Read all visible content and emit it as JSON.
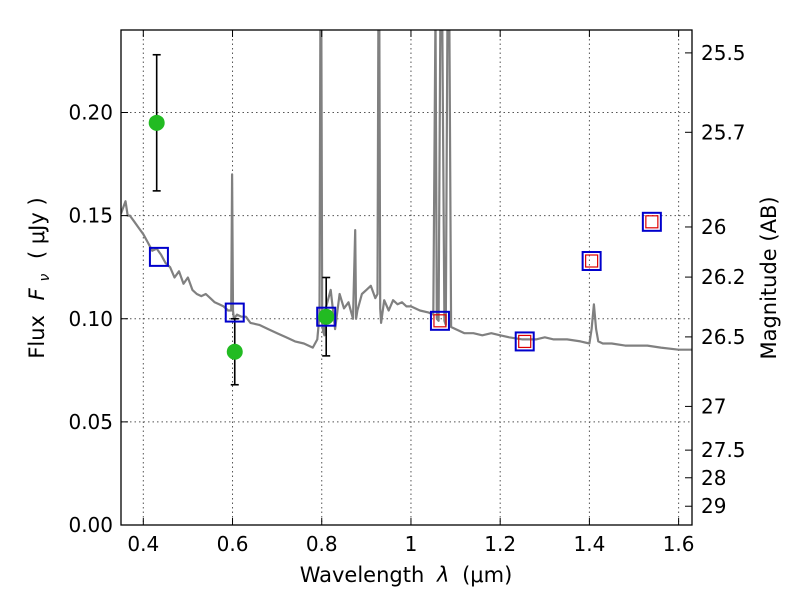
{
  "chart_data": {
    "type": "scatter",
    "xlabel_prefix": "Wavelength",
    "xlabel_symbol": "λ",
    "xlabel_unit": "(μm)",
    "ylabel_prefix": "Flux",
    "ylabel_symbol": "F",
    "ylabel_symbol_sub": "ν",
    "ylabel_unit": "( μJy )",
    "y2label": "Magnitude (AB)",
    "xlim": [
      0.35,
      1.63
    ],
    "ylim": [
      0.0,
      0.24
    ],
    "grid": true,
    "x_ticks": [
      0.4,
      0.6,
      0.8,
      1.0,
      1.2,
      1.4,
      1.6
    ],
    "x_tick_labels": [
      "0.4",
      "0.6",
      "0.8",
      "1",
      "1.2",
      "1.4",
      "1.6"
    ],
    "y_ticks": [
      0.0,
      0.05,
      0.1,
      0.15,
      0.2
    ],
    "y_tick_labels": [
      "0.00",
      "0.05",
      "0.10",
      "0.15",
      "0.20"
    ],
    "y2_ticks": [
      {
        "label": "25.5",
        "flux": 0.2289
      },
      {
        "label": "25.7",
        "flux": 0.1904
      },
      {
        "label": "26",
        "flux": 0.1445
      },
      {
        "label": "26.2",
        "flux": 0.1202
      },
      {
        "label": "26.5",
        "flux": 0.0912
      },
      {
        "label": "27",
        "flux": 0.0575
      },
      {
        "label": "27.5",
        "flux": 0.0363
      },
      {
        "label": "28",
        "flux": 0.0229
      },
      {
        "label": "29",
        "flux": 0.0091
      }
    ],
    "series": [
      {
        "kind": "model_sed",
        "color": "#808080",
        "x": [
          0.35,
          0.36,
          0.365,
          0.37,
          0.38,
          0.39,
          0.4,
          0.41,
          0.42,
          0.43,
          0.44,
          0.45,
          0.46,
          0.47,
          0.48,
          0.49,
          0.5,
          0.51,
          0.52,
          0.53,
          0.54,
          0.55,
          0.56,
          0.57,
          0.58,
          0.59,
          0.597,
          0.599,
          0.601,
          0.603,
          0.61,
          0.62,
          0.63,
          0.64,
          0.66,
          0.68,
          0.7,
          0.72,
          0.74,
          0.76,
          0.78,
          0.79,
          0.795,
          0.797,
          0.799,
          0.801,
          0.803,
          0.806,
          0.81,
          0.82,
          0.83,
          0.84,
          0.85,
          0.86,
          0.87,
          0.875,
          0.877,
          0.88,
          0.89,
          0.9,
          0.91,
          0.92,
          0.925,
          0.927,
          0.929,
          0.931,
          0.933,
          0.94,
          0.95,
          0.96,
          0.97,
          0.98,
          0.99,
          1.0,
          1.02,
          1.04,
          1.05,
          1.055,
          1.058,
          1.062,
          1.066,
          1.07,
          1.075,
          1.078,
          1.082,
          1.086,
          1.09,
          1.1,
          1.12,
          1.14,
          1.16,
          1.18,
          1.2,
          1.22,
          1.25,
          1.28,
          1.3,
          1.32,
          1.35,
          1.38,
          1.4,
          1.405,
          1.41,
          1.415,
          1.42,
          1.43,
          1.45,
          1.48,
          1.5,
          1.53,
          1.56,
          1.6,
          1.63
        ],
        "y": [
          0.151,
          0.157,
          0.15,
          0.15,
          0.147,
          0.144,
          0.141,
          0.137,
          0.133,
          0.134,
          0.131,
          0.127,
          0.125,
          0.12,
          0.123,
          0.117,
          0.12,
          0.114,
          0.112,
          0.111,
          0.112,
          0.11,
          0.108,
          0.107,
          0.106,
          0.104,
          0.104,
          0.17,
          0.104,
          0.1,
          0.102,
          0.101,
          0.101,
          0.098,
          0.097,
          0.095,
          0.093,
          0.091,
          0.089,
          0.088,
          0.086,
          0.09,
          0.102,
          0.25,
          0.25,
          0.098,
          0.094,
          0.092,
          0.106,
          0.114,
          0.095,
          0.112,
          0.105,
          0.108,
          0.1,
          0.143,
          0.1,
          0.104,
          0.112,
          0.114,
          0.116,
          0.11,
          0.112,
          0.25,
          0.25,
          0.105,
          0.098,
          0.109,
          0.104,
          0.109,
          0.107,
          0.108,
          0.106,
          0.106,
          0.104,
          0.103,
          0.102,
          0.25,
          0.1,
          0.099,
          0.25,
          0.25,
          0.099,
          0.097,
          0.25,
          0.25,
          0.096,
          0.095,
          0.093,
          0.093,
          0.092,
          0.093,
          0.092,
          0.091,
          0.09,
          0.09,
          0.091,
          0.09,
          0.09,
          0.089,
          0.088,
          0.095,
          0.107,
          0.095,
          0.089,
          0.088,
          0.088,
          0.087,
          0.087,
          0.087,
          0.086,
          0.085,
          0.085
        ]
      },
      {
        "kind": "model_photometry",
        "marker": "square",
        "color": "#0000cc",
        "x": [
          0.435,
          0.605,
          0.81,
          1.065,
          1.255,
          1.405,
          1.54
        ],
        "y": [
          0.13,
          0.103,
          0.101,
          0.099,
          0.089,
          0.128,
          0.147
        ]
      },
      {
        "kind": "model_photometry_small",
        "marker": "square",
        "color": "#dd0000",
        "x": [
          1.065,
          1.255,
          1.405,
          1.54
        ],
        "y": [
          0.099,
          0.089,
          0.128,
          0.147
        ]
      },
      {
        "kind": "observed",
        "marker": "circle",
        "color": "#22bb22",
        "x": [
          0.43,
          0.605,
          0.81
        ],
        "y": [
          0.195,
          0.084,
          0.101
        ],
        "err_low": [
          0.033,
          0.016,
          0.019
        ],
        "err_high": [
          0.033,
          0.016,
          0.019
        ]
      }
    ]
  }
}
